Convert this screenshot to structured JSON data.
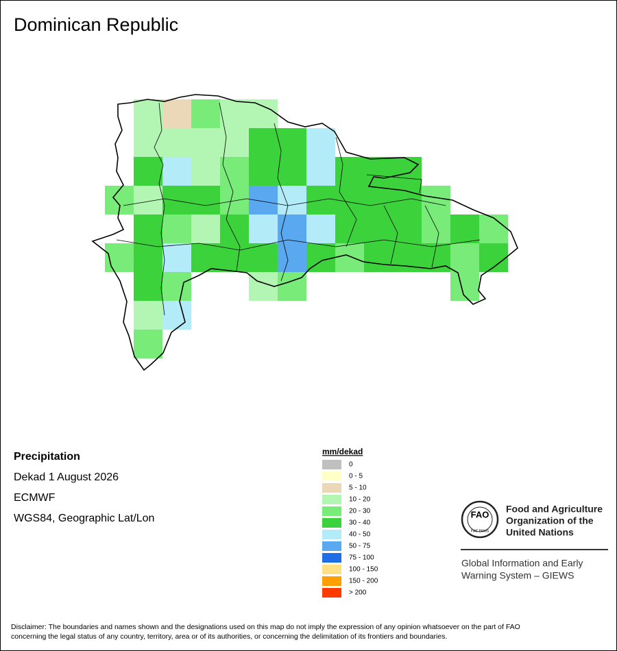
{
  "title": "Dominican Republic",
  "info": [
    "Precipitation",
    "Dekad 1 August 2026",
    "ECMWF",
    "WGS84, Geographic Lat/Lon"
  ],
  "legend": {
    "title": "mm/dekad",
    "items": [
      {
        "label": "0",
        "color": "#c0c0c0"
      },
      {
        "label": "0 - 5",
        "color": "#ffffc8"
      },
      {
        "label": "5 - 10",
        "color": "#ead8b8"
      },
      {
        "label": "10 - 20",
        "color": "#b3f5b3"
      },
      {
        "label": "20 - 30",
        "color": "#78eb78"
      },
      {
        "label": "30 - 40",
        "color": "#3cd23c"
      },
      {
        "label": "40 - 50",
        "color": "#b3ecf8"
      },
      {
        "label": "50 - 75",
        "color": "#5aa8f0"
      },
      {
        "label": "75 - 100",
        "color": "#1e6ee6"
      },
      {
        "label": "100 - 150",
        "color": "#ffe082"
      },
      {
        "label": "150 - 200",
        "color": "#ffa000"
      },
      {
        "label": "> 200",
        "color": "#ff3c00"
      }
    ]
  },
  "grid": [
    [
      null,
      "10 - 20",
      "5 - 10",
      "20 - 30",
      "10 - 20",
      "10 - 20",
      null,
      null,
      null,
      null,
      null,
      null,
      null,
      null,
      null
    ],
    [
      null,
      "10 - 20",
      "10 - 20",
      "10 - 20",
      "10 - 20",
      "30 - 40",
      "30 - 40",
      "40 - 50",
      null,
      null,
      null,
      null,
      null,
      null,
      null
    ],
    [
      null,
      "30 - 40",
      "40 - 50",
      "10 - 20",
      "20 - 30",
      "30 - 40",
      "30 - 40",
      "40 - 50",
      "30 - 40",
      "30 - 40",
      "30 - 40",
      null,
      null,
      null,
      null
    ],
    [
      "20 - 30",
      "10 - 20",
      "30 - 40",
      "30 - 40",
      "20 - 30",
      "50 - 75",
      "40 - 50",
      "30 - 40",
      "30 - 40",
      "30 - 40",
      "30 - 40",
      "20 - 30",
      null,
      null,
      null
    ],
    [
      null,
      "30 - 40",
      "20 - 30",
      "10 - 20",
      "30 - 40",
      "40 - 50",
      "50 - 75",
      "40 - 50",
      "30 - 40",
      "30 - 40",
      "30 - 40",
      "20 - 30",
      "30 - 40",
      "20 - 30",
      null
    ],
    [
      "20 - 30",
      "30 - 40",
      "40 - 50",
      "30 - 40",
      "30 - 40",
      "30 - 40",
      "50 - 75",
      "30 - 40",
      "20 - 30",
      "30 - 40",
      "30 - 40",
      "30 - 40",
      "20 - 30",
      "30 - 40",
      null
    ],
    [
      null,
      "30 - 40",
      "20 - 30",
      null,
      null,
      "10 - 20",
      "20 - 30",
      null,
      null,
      null,
      null,
      null,
      "20 - 30",
      null,
      null
    ],
    [
      null,
      "10 - 20",
      "40 - 50",
      null,
      null,
      null,
      null,
      null,
      null,
      null,
      null,
      null,
      null,
      null,
      null
    ],
    [
      null,
      "20 - 30",
      null,
      null,
      null,
      null,
      null,
      null,
      null,
      null,
      null,
      null,
      null,
      null,
      null
    ]
  ],
  "logo": {
    "emblem": "FAO",
    "motto": "FIAT PANIS",
    "org": [
      "Food and Agriculture",
      "Organization of the",
      "United Nations"
    ],
    "system": [
      "Global Information and Early",
      "Warning System – GIEWS"
    ]
  },
  "disclaimer": [
    "Disclaimer: The boundaries and names shown and the designations used on this map do not imply the expression of any opinion whatsoever on the part of FAO",
    "concerning the legal status of any country, territory, area or of its authorities, or concerning the delimitation of its frontiers and boundaries."
  ]
}
